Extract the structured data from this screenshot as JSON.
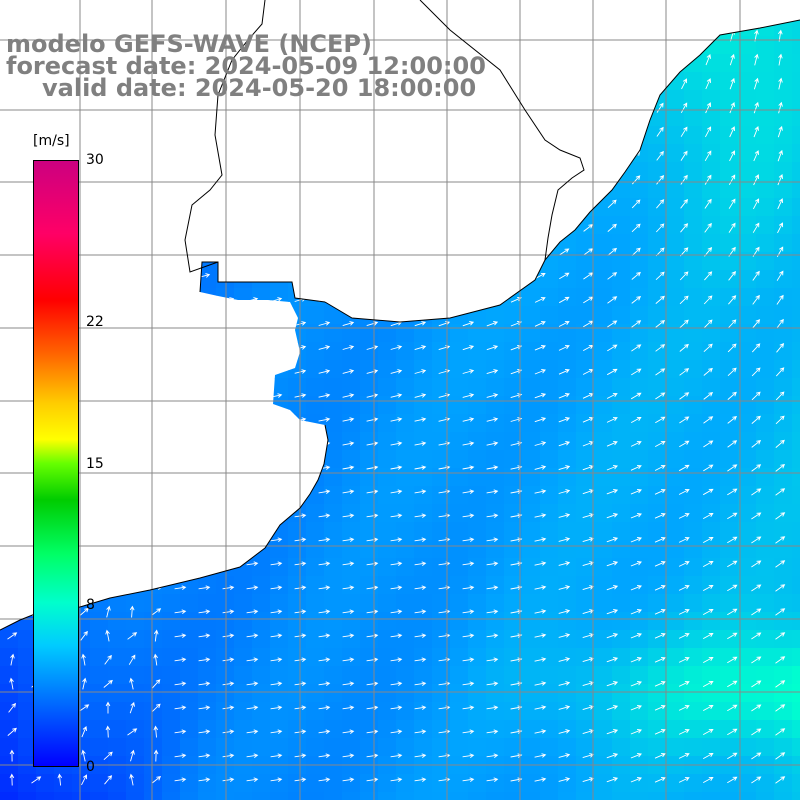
{
  "title": {
    "line1": "modelo GEFS-WAVE (NCEP)",
    "line2": "forecast date: 2024-05-09 12:00:00",
    "line3": "valid date: 2024-05-20 18:00:00"
  },
  "colorbar": {
    "unit": "[m/s]",
    "ticks": [
      {
        "label": "30",
        "value": 30
      },
      {
        "label": "22",
        "value": 22
      },
      {
        "label": "15",
        "value": 15
      },
      {
        "label": "8",
        "value": 8
      },
      {
        "label": "0",
        "value": 0
      }
    ],
    "min": 0,
    "max": 30
  },
  "field": {
    "variable": "wind speed and direction",
    "range_shown": [
      0,
      8
    ],
    "colors": {
      "low": "#0000ff",
      "mid": "#0099ff",
      "high": "#00ffcc"
    }
  },
  "map": {
    "land_color": "#ffffff",
    "grid_color": "#888888",
    "coast_color": "#000000",
    "arrow_color": "#ffffff"
  }
}
